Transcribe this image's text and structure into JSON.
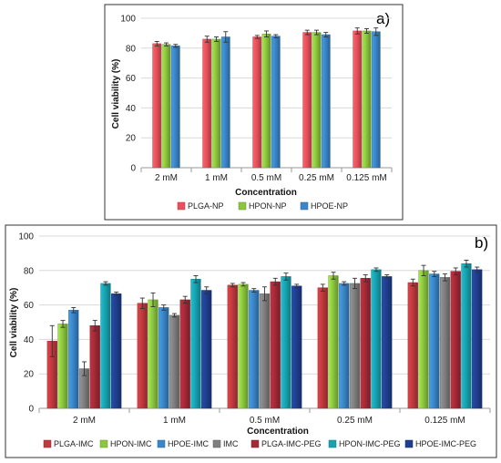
{
  "chart_data": [
    {
      "type": "bar",
      "panel_label": "a)",
      "xlabel": "Concentration",
      "ylabel": "Cell viability (%)",
      "ylim": [
        0,
        100
      ],
      "yticks": [
        "0",
        "20",
        "40",
        "60",
        "80",
        "100"
      ],
      "categories": [
        "2 mM",
        "1 mM",
        "0.5 mM",
        "0.25 mM",
        "0.125 mM"
      ],
      "legend_position": "bottom",
      "series": [
        {
          "name": "PLGA-NP",
          "color": "#e8515a",
          "values": [
            83,
            86,
            87.5,
            90.5,
            91.5
          ],
          "errors": [
            1.5,
            2,
            1,
            1.5,
            2
          ]
        },
        {
          "name": "HPON-NP",
          "color": "#8cc63f",
          "values": [
            82.5,
            86,
            89.5,
            90.5,
            91.5
          ],
          "errors": [
            1,
            1.5,
            2,
            1.5,
            1.5
          ]
        },
        {
          "name": "HPOE-NP",
          "color": "#3a86c8",
          "values": [
            81.5,
            87.5,
            88,
            89,
            91
          ],
          "errors": [
            1,
            3.5,
            1,
            1.5,
            2.5
          ]
        }
      ]
    },
    {
      "type": "bar",
      "panel_label": "b)",
      "xlabel": "Concentration",
      "ylabel": "Cell viability (%)",
      "ylim": [
        0,
        100
      ],
      "yticks": [
        "0",
        "20",
        "40",
        "60",
        "80",
        "100"
      ],
      "categories": [
        "2 mM",
        "1 mM",
        "0.5 mM",
        "0.25 mM",
        "0.125 mM"
      ],
      "legend_position": "bottom",
      "series": [
        {
          "name": "PLGA-IMC",
          "color": "#c0393f",
          "values": [
            39,
            61,
            71.5,
            70,
            73
          ],
          "errors": [
            9,
            3,
            1,
            2,
            2
          ]
        },
        {
          "name": "HPON-IMC",
          "color": "#8cc63f",
          "values": [
            49,
            63,
            72,
            77,
            80
          ],
          "errors": [
            2,
            4,
            1,
            2,
            3
          ]
        },
        {
          "name": "HPOE-IMC",
          "color": "#3a86c8",
          "values": [
            57,
            58.5,
            68.5,
            72.5,
            78
          ],
          "errors": [
            1.5,
            1.5,
            1,
            1,
            1.5
          ]
        },
        {
          "name": "IMC",
          "color": "#7f7f7f",
          "values": [
            23,
            54,
            66.5,
            72.5,
            76
          ],
          "errors": [
            4,
            1,
            4,
            3,
            2
          ]
        },
        {
          "name": "PLGA-IMC-PEG",
          "color": "#a52a38",
          "values": [
            48,
            63,
            73.5,
            75.5,
            79.5
          ],
          "errors": [
            3,
            2,
            2,
            2,
            2
          ]
        },
        {
          "name": "HPON-IMC-PEG",
          "color": "#17a2b0",
          "values": [
            72.5,
            75,
            76.5,
            80.5,
            84
          ],
          "errors": [
            1,
            2,
            2,
            1,
            2
          ]
        },
        {
          "name": "HPOE-IMC-PEG",
          "color": "#1f3f8f",
          "values": [
            66.5,
            68.5,
            71,
            76.5,
            80.5
          ],
          "errors": [
            1,
            2,
            1,
            1,
            1.5
          ]
        }
      ]
    }
  ]
}
